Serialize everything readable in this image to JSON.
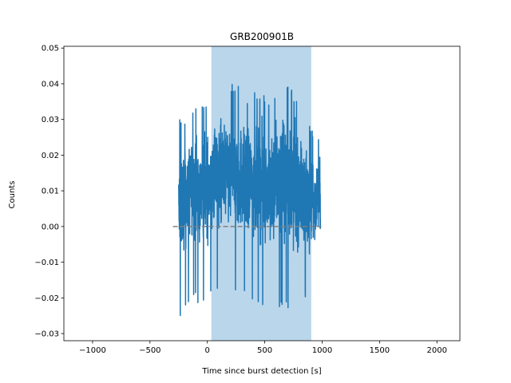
{
  "chart_data": {
    "type": "line",
    "title": "GRB200901B",
    "xlabel": "Time since burst detection [s]",
    "ylabel": "Counts",
    "xlim": [
      -1250,
      2200
    ],
    "ylim": [
      -0.032,
      0.0505
    ],
    "xticks": [
      -1000,
      -500,
      0,
      500,
      1000,
      1500,
      2000
    ],
    "xtick_labels": [
      "−1000",
      "−500",
      "0",
      "500",
      "1000",
      "1500",
      "2000"
    ],
    "yticks": [
      -0.03,
      -0.02,
      -0.01,
      0.0,
      0.01,
      0.02,
      0.03,
      0.04,
      0.05
    ],
    "ytick_labels": [
      "−0.03",
      "−0.02",
      "−0.01",
      "0.00",
      "0.01",
      "0.02",
      "0.03",
      "0.04",
      "0.05"
    ],
    "grid": false,
    "shaded_interval": {
      "x_start": 35,
      "x_end": 905,
      "color": "#bad6eb"
    },
    "baseline": {
      "y": 0.0,
      "x_start": -300,
      "x_end": 1000,
      "color": "#808080",
      "style": "dashed"
    },
    "series": [
      {
        "color": "#1f77b4",
        "x_start": -250,
        "x_end": 985,
        "y_min": -0.0285,
        "y_max": 0.0435,
        "envelope": [
          {
            "x": -250,
            "lo": -0.028,
            "hi": 0.03
          },
          {
            "x": -150,
            "lo": -0.02,
            "hi": 0.033
          },
          {
            "x": -50,
            "lo": -0.022,
            "hi": 0.034
          },
          {
            "x": 50,
            "lo": -0.02,
            "hi": 0.038
          },
          {
            "x": 150,
            "lo": -0.018,
            "hi": 0.04
          },
          {
            "x": 250,
            "lo": -0.02,
            "hi": 0.041
          },
          {
            "x": 350,
            "lo": -0.02,
            "hi": 0.037
          },
          {
            "x": 450,
            "lo": -0.022,
            "hi": 0.039
          },
          {
            "x": 550,
            "lo": -0.025,
            "hi": 0.035
          },
          {
            "x": 650,
            "lo": -0.022,
            "hi": 0.043
          },
          {
            "x": 750,
            "lo": -0.025,
            "hi": 0.038
          },
          {
            "x": 850,
            "lo": -0.02,
            "hi": 0.03
          },
          {
            "x": 985,
            "lo": -0.017,
            "hi": 0.025
          }
        ]
      }
    ]
  }
}
